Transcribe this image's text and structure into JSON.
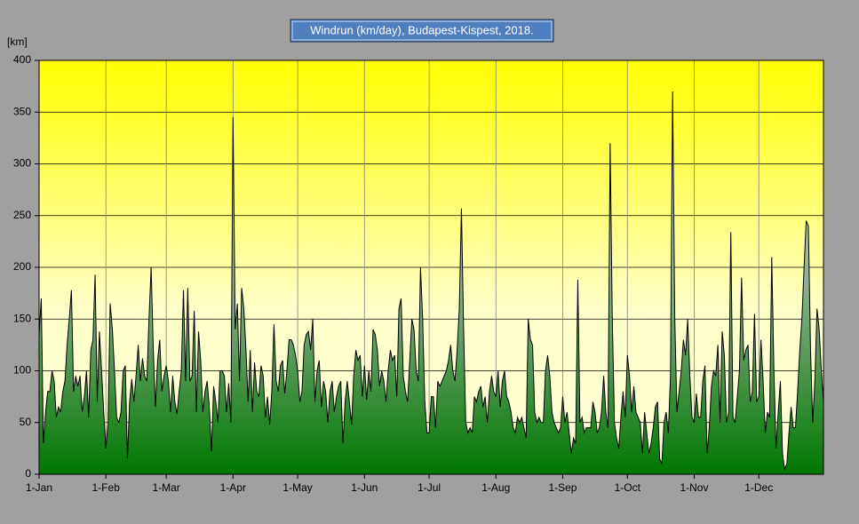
{
  "chart_data": {
    "type": "area",
    "title": "Windrun (km/day), Budapest-Kispest, 2018.",
    "y_label": "[km]",
    "color": "#000000",
    "grid": true,
    "ylim": [
      0,
      400
    ],
    "yticks": [
      0,
      50,
      100,
      150,
      200,
      250,
      300,
      350,
      400
    ],
    "categories": [
      "1-Jan",
      null,
      null,
      null,
      null,
      null,
      null,
      null,
      null,
      null,
      null,
      null,
      null,
      null,
      null,
      null,
      null,
      null,
      null,
      null,
      null,
      null,
      null,
      null,
      null,
      null,
      null,
      null,
      null,
      null,
      null,
      "1-Feb",
      null,
      null,
      null,
      null,
      null,
      null,
      null,
      null,
      null,
      null,
      null,
      null,
      null,
      null,
      null,
      null,
      null,
      null,
      null,
      null,
      null,
      null,
      null,
      null,
      null,
      null,
      null,
      "1-Mar",
      null,
      null,
      null,
      null,
      null,
      null,
      null,
      null,
      null,
      null,
      null,
      null,
      null,
      null,
      null,
      null,
      null,
      null,
      null,
      null,
      null,
      null,
      null,
      null,
      null,
      null,
      null,
      null,
      null,
      null,
      "1-Apr",
      null,
      null,
      null,
      null,
      null,
      null,
      null,
      null,
      null,
      null,
      null,
      null,
      null,
      null,
      null,
      null,
      null,
      null,
      null,
      null,
      null,
      null,
      null,
      null,
      null,
      null,
      null,
      null,
      null,
      "1-May",
      null,
      null,
      null,
      null,
      null,
      null,
      null,
      null,
      null,
      null,
      null,
      null,
      null,
      null,
      null,
      null,
      null,
      null,
      null,
      null,
      null,
      null,
      null,
      null,
      null,
      null,
      null,
      null,
      null,
      null,
      "1-Jun",
      null,
      null,
      null,
      null,
      null,
      null,
      null,
      null,
      null,
      null,
      null,
      null,
      null,
      null,
      null,
      null,
      null,
      null,
      null,
      null,
      null,
      null,
      null,
      null,
      null,
      null,
      null,
      null,
      null,
      "1-Jul",
      null,
      null,
      null,
      null,
      null,
      null,
      null,
      null,
      null,
      null,
      null,
      null,
      null,
      null,
      null,
      null,
      null,
      null,
      null,
      null,
      null,
      null,
      null,
      null,
      null,
      null,
      null,
      null,
      null,
      null,
      "1-Aug",
      null,
      null,
      null,
      null,
      null,
      null,
      null,
      null,
      null,
      null,
      null,
      null,
      null,
      null,
      null,
      null,
      null,
      null,
      null,
      null,
      null,
      null,
      null,
      null,
      null,
      null,
      null,
      null,
      null,
      null,
      "1-Sep",
      null,
      null,
      null,
      null,
      null,
      null,
      null,
      null,
      null,
      null,
      null,
      null,
      null,
      null,
      null,
      null,
      null,
      null,
      null,
      null,
      null,
      null,
      null,
      null,
      null,
      null,
      null,
      null,
      null,
      "1-Oct",
      null,
      null,
      null,
      null,
      null,
      null,
      null,
      null,
      null,
      null,
      null,
      null,
      null,
      null,
      null,
      null,
      null,
      null,
      null,
      null,
      null,
      null,
      null,
      null,
      null,
      null,
      null,
      null,
      null,
      null,
      "1-Nov",
      null,
      null,
      null,
      null,
      null,
      null,
      null,
      null,
      null,
      null,
      null,
      null,
      null,
      null,
      null,
      null,
      null,
      null,
      null,
      null,
      null,
      null,
      null,
      null,
      null,
      null,
      null,
      null,
      null,
      "1-Dec",
      null,
      null,
      null,
      null,
      null,
      null,
      null,
      null,
      null,
      null,
      null,
      null,
      null,
      null,
      null,
      null,
      null,
      null,
      null,
      null,
      null,
      null,
      null,
      null,
      null,
      null,
      null,
      null,
      null,
      null
    ],
    "values": [
      135,
      170,
      30,
      60,
      80,
      80,
      100,
      90,
      55,
      65,
      60,
      80,
      90,
      125,
      150,
      178,
      80,
      95,
      85,
      95,
      60,
      75,
      100,
      55,
      120,
      130,
      193,
      70,
      138,
      100,
      60,
      25,
      50,
      165,
      140,
      100,
      55,
      50,
      60,
      100,
      105,
      15,
      70,
      92,
      70,
      95,
      125,
      90,
      112,
      95,
      90,
      150,
      200,
      120,
      65,
      110,
      130,
      80,
      95,
      105,
      90,
      60,
      95,
      70,
      58,
      80,
      100,
      178,
      90,
      180,
      90,
      95,
      158,
      60,
      138,
      110,
      60,
      80,
      90,
      65,
      22,
      85,
      70,
      50,
      100,
      100,
      95,
      60,
      88,
      50,
      345,
      140,
      165,
      90,
      180,
      160,
      120,
      70,
      120,
      60,
      108,
      80,
      75,
      105,
      95,
      55,
      75,
      48,
      80,
      145,
      90,
      80,
      105,
      110,
      78,
      100,
      130,
      130,
      125,
      115,
      100,
      70,
      80,
      125,
      135,
      138,
      120,
      150,
      70,
      100,
      110,
      65,
      90,
      80,
      50,
      80,
      90,
      60,
      75,
      85,
      90,
      30,
      70,
      90,
      70,
      48,
      95,
      120,
      110,
      115,
      75,
      105,
      72,
      100,
      80,
      140,
      135,
      120,
      85,
      100,
      90,
      70,
      100,
      120,
      110,
      115,
      75,
      160,
      170,
      95,
      80,
      70,
      110,
      150,
      140,
      100,
      90,
      200,
      150,
      70,
      40,
      40,
      75,
      75,
      45,
      90,
      85,
      90,
      95,
      100,
      110,
      125,
      100,
      90,
      120,
      160,
      257,
      140,
      50,
      40,
      45,
      40,
      75,
      70,
      80,
      85,
      65,
      75,
      50,
      80,
      95,
      80,
      75,
      100,
      65,
      90,
      100,
      75,
      70,
      60,
      45,
      40,
      55,
      50,
      55,
      45,
      35,
      150,
      130,
      125,
      60,
      50,
      55,
      50,
      50,
      100,
      115,
      95,
      60,
      50,
      45,
      40,
      45,
      75,
      50,
      60,
      40,
      20,
      35,
      30,
      188,
      50,
      55,
      40,
      45,
      45,
      45,
      70,
      60,
      40,
      45,
      60,
      95,
      60,
      45,
      320,
      150,
      50,
      35,
      25,
      55,
      80,
      55,
      115,
      95,
      60,
      85,
      60,
      55,
      50,
      20,
      60,
      40,
      20,
      30,
      45,
      65,
      70,
      15,
      10,
      50,
      60,
      40,
      95,
      370,
      150,
      60,
      80,
      100,
      130,
      115,
      150,
      95,
      55,
      50,
      78,
      55,
      55,
      90,
      105,
      20,
      45,
      85,
      100,
      95,
      125,
      50,
      138,
      115,
      50,
      60,
      234,
      55,
      50,
      75,
      100,
      190,
      110,
      120,
      125,
      70,
      80,
      155,
      70,
      75,
      130,
      90,
      40,
      60,
      55,
      210,
      100,
      25,
      60,
      90,
      20,
      5,
      10,
      40,
      65,
      45,
      45,
      80,
      120,
      150,
      200,
      245,
      240,
      120,
      50,
      90,
      160,
      140,
      100,
      70
    ]
  }
}
